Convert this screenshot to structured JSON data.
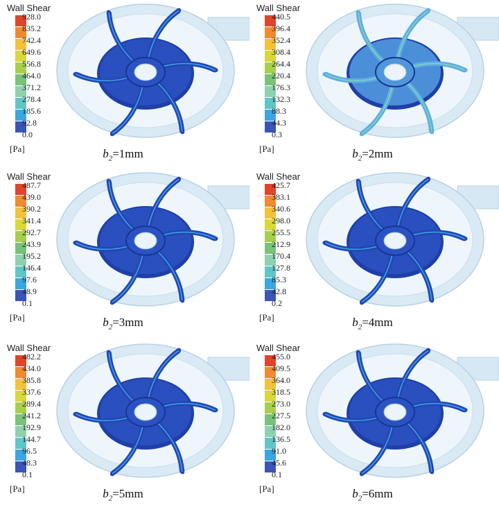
{
  "legend_colors": [
    "#3a54b8",
    "#3aa7e0",
    "#5fc6c8",
    "#8fd0b0",
    "#78c27a",
    "#a7cf4c",
    "#d8d83a",
    "#f2c23a",
    "#f08a30",
    "#e0452c"
  ],
  "panels": [
    {
      "title": "Wall Shear",
      "unit": "[Pa]",
      "ticks": [
        "928.0",
        "835.2",
        "742.4",
        "649.6",
        "556.8",
        "464.0",
        "371.2",
        "278.4",
        "185.6",
        "92.8",
        "0.0"
      ],
      "caption_prefix": "b",
      "caption_sub": "2",
      "caption_suffix": "=1mm"
    },
    {
      "title": "Wall Shear",
      "unit": "[Pa]",
      "ticks": [
        "440.5",
        "396.4",
        "352.4",
        "308.4",
        "264.4",
        "220.4",
        "176.3",
        "132.3",
        "88.3",
        "44.3",
        "0.3"
      ],
      "caption_prefix": "b",
      "caption_sub": "2",
      "caption_suffix": "=2mm"
    },
    {
      "title": "Wall Shear",
      "unit": "[Pa]",
      "ticks": [
        "487.7",
        "439.0",
        "390.2",
        "341.4",
        "292.7",
        "243.9",
        "195.2",
        "146.4",
        "97.6",
        "48.9",
        "0.1"
      ],
      "caption_prefix": "b",
      "caption_sub": "2",
      "caption_suffix": "=3mm"
    },
    {
      "title": "Wall Shear",
      "unit": "[Pa]",
      "ticks": [
        "425.7",
        "383.1",
        "340.6",
        "298.0",
        "255.5",
        "212.9",
        "170.4",
        "127.8",
        "85.3",
        "42.8",
        "0.2"
      ],
      "caption_prefix": "b",
      "caption_sub": "2",
      "caption_suffix": "=4mm"
    },
    {
      "title": "Wall Shear",
      "unit": "[Pa]",
      "ticks": [
        "482.2",
        "434.0",
        "385.8",
        "337.6",
        "289.4",
        "241.2",
        "192.9",
        "144.7",
        "96.5",
        "48.3",
        "0.1"
      ],
      "caption_prefix": "b",
      "caption_sub": "2",
      "caption_suffix": "=5mm"
    },
    {
      "title": "Wall Shear",
      "unit": "[Pa]",
      "ticks": [
        "455.0",
        "409.5",
        "364.0",
        "318.5",
        "273.0",
        "227.5",
        "182.0",
        "136.5",
        "91.0",
        "45.6",
        "0.1"
      ],
      "caption_prefix": "b",
      "caption_sub": "2",
      "caption_suffix": "=6mm"
    }
  ]
}
